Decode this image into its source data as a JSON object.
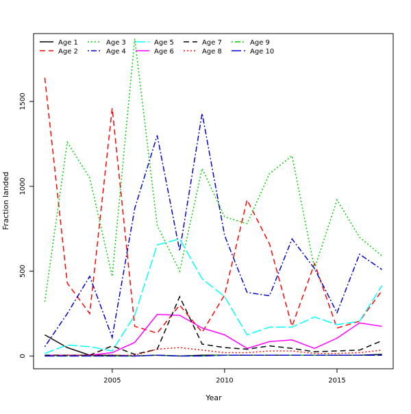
{
  "chart_data": {
    "type": "line",
    "title": "",
    "xlabel": "Year",
    "ylabel": "Fraction landed",
    "xlim": [
      2001.5,
      2017.5
    ],
    "ylim": [
      -75,
      1900
    ],
    "xticks": [
      2005,
      2010,
      2015
    ],
    "yticks": [
      0,
      500,
      1000,
      1500
    ],
    "grid": false,
    "legend_position": "top-left",
    "x": [
      2002,
      2003,
      2004,
      2005,
      2006,
      2007,
      2008,
      2009,
      2010,
      2011,
      2012,
      2013,
      2014,
      2015,
      2016,
      2017
    ],
    "series": [
      {
        "name": "Age 1",
        "color": "#000000",
        "dash": "solid",
        "values": [
          125,
          50,
          5,
          5,
          0,
          5,
          0,
          5,
          5,
          5,
          5,
          5,
          5,
          5,
          5,
          10
        ]
      },
      {
        "name": "Age 2",
        "color": "#ff0000",
        "dash": "dashed",
        "values": [
          1640,
          430,
          250,
          1460,
          175,
          135,
          300,
          140,
          360,
          920,
          660,
          175,
          545,
          165,
          205,
          385
        ]
      },
      {
        "name": "Age 3",
        "color": "#00cd00",
        "dash": "dotted",
        "values": [
          320,
          1260,
          1050,
          470,
          1870,
          770,
          500,
          1105,
          820,
          780,
          1075,
          1180,
          515,
          920,
          700,
          590
        ]
      },
      {
        "name": "Age 4",
        "color": "#0000cd",
        "dash": "dotdash",
        "values": [
          55,
          250,
          470,
          110,
          870,
          1300,
          620,
          1430,
          710,
          375,
          355,
          690,
          515,
          255,
          600,
          510
        ]
      },
      {
        "name": "Age 5",
        "color": "#00ffff",
        "dash": "longdash",
        "values": [
          15,
          65,
          55,
          30,
          240,
          655,
          690,
          455,
          350,
          125,
          170,
          170,
          230,
          185,
          205,
          415
        ]
      },
      {
        "name": "Age 6",
        "color": "#ff00ff",
        "dash": "solid",
        "values": [
          5,
          5,
          5,
          20,
          80,
          245,
          240,
          165,
          125,
          45,
          85,
          95,
          45,
          105,
          195,
          175
        ]
      },
      {
        "name": "Age 7",
        "color": "#000000",
        "dash": "dashed",
        "values": [
          5,
          5,
          5,
          60,
          10,
          40,
          350,
          70,
          50,
          40,
          60,
          45,
          25,
          30,
          35,
          90
        ]
      },
      {
        "name": "Age 8",
        "color": "#ff0000",
        "dash": "dotted",
        "values": [
          0,
          5,
          5,
          5,
          5,
          40,
          50,
          35,
          20,
          20,
          30,
          30,
          15,
          15,
          20,
          35
        ]
      },
      {
        "name": "Age 9",
        "color": "#00cd00",
        "dash": "dotdash",
        "values": [
          0,
          0,
          0,
          0,
          0,
          5,
          0,
          0,
          5,
          5,
          5,
          5,
          5,
          5,
          5,
          5
        ]
      },
      {
        "name": "Age 10",
        "color": "#0000cd",
        "dash": "longdash",
        "values": [
          0,
          0,
          0,
          0,
          0,
          5,
          0,
          0,
          5,
          5,
          5,
          5,
          5,
          5,
          5,
          5
        ]
      }
    ]
  }
}
